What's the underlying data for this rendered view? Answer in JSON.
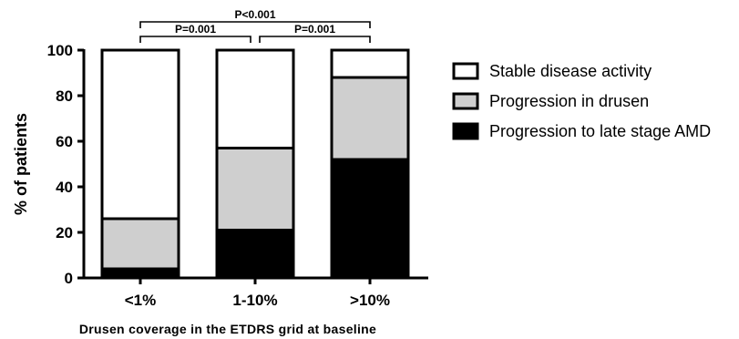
{
  "chart_data": {
    "type": "bar",
    "stacked": true,
    "title": "",
    "xlabel": "Drusen coverage in the ETDRS grid at baseline",
    "ylabel": "% of patients",
    "ylim": [
      0,
      100
    ],
    "yticks": [
      "0",
      "20",
      "40",
      "60",
      "80",
      "100"
    ],
    "categories": [
      "<1%",
      "1-10%",
      ">10%"
    ],
    "series": [
      {
        "name": "Progression to late stage AMD",
        "values": [
          4,
          21,
          52
        ],
        "color": "#000000"
      },
      {
        "name": "Progression in drusen",
        "values": [
          22,
          36,
          36
        ],
        "color": "#cfcfcf"
      },
      {
        "name": "Stable disease activity",
        "values": [
          74,
          43,
          12
        ],
        "color": "#ffffff"
      }
    ],
    "legend_order": [
      "Stable disease activity",
      "Progression in drusen",
      "Progression to late stage AMD"
    ],
    "legend_position": "right",
    "significance": [
      {
        "from": 0,
        "to": 2,
        "label": "P<0.001"
      },
      {
        "from": 0,
        "to": 1,
        "label": "P=0.001"
      },
      {
        "from": 1,
        "to": 2,
        "label": "P=0.001"
      }
    ],
    "grid": false
  }
}
